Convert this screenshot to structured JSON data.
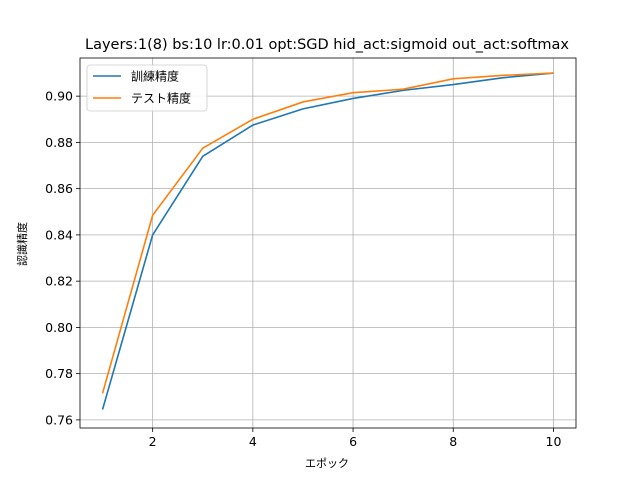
{
  "chart_data": {
    "type": "line",
    "title": "Layers:1(8) bs:10 lr:0.01 opt:SGD hid_act:sigmoid out_act:softmax",
    "xlabel": "エポック",
    "ylabel": "認識精度",
    "x": [
      1,
      2,
      3,
      4,
      5,
      6,
      7,
      8,
      9,
      10
    ],
    "xlim": [
      0.55,
      10.45
    ],
    "ylim": [
      0.7565,
      0.9165
    ],
    "xticks": [
      2,
      4,
      6,
      8,
      10
    ],
    "yticks": [
      0.76,
      0.78,
      0.8,
      0.82,
      0.84,
      0.86,
      0.88,
      0.9
    ],
    "ytick_labels": [
      "0.76",
      "0.78",
      "0.80",
      "0.82",
      "0.84",
      "0.86",
      "0.88",
      "0.90"
    ],
    "grid": true,
    "legend_position": "upper-left",
    "series": [
      {
        "name": "訓練精度",
        "color": "#1f77b4",
        "values": [
          0.7645,
          0.84,
          0.874,
          0.8875,
          0.8945,
          0.899,
          0.9025,
          0.905,
          0.908,
          0.91
        ]
      },
      {
        "name": "テスト精度",
        "color": "#ff7f0e",
        "values": [
          0.7715,
          0.8485,
          0.8775,
          0.89,
          0.8975,
          0.9015,
          0.903,
          0.9075,
          0.909,
          0.91
        ]
      }
    ]
  }
}
